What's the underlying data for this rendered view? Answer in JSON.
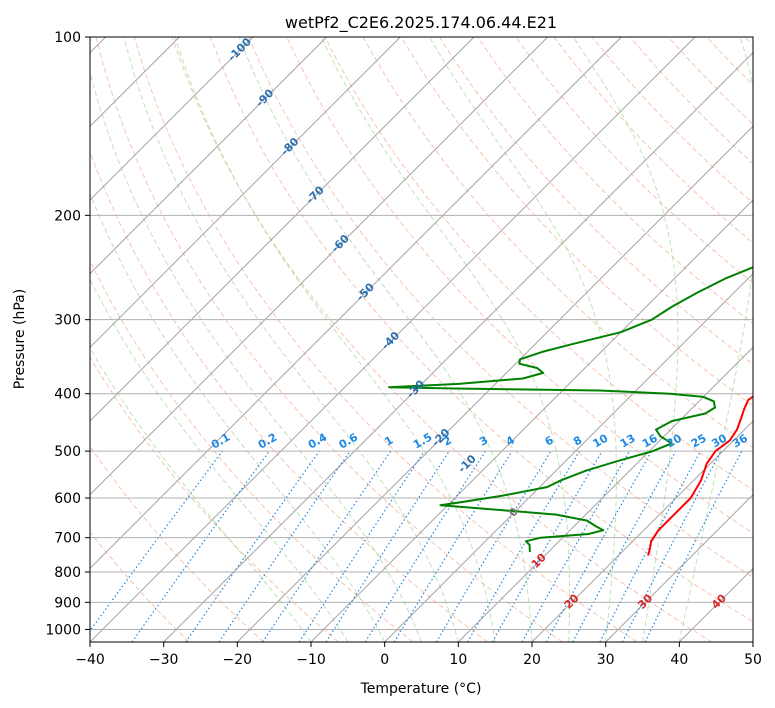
{
  "chart_data": {
    "type": "line",
    "title": "wetPf2_C2E6.2025.174.06.44.E21",
    "xlabel": "Temperature (°C)",
    "ylabel": "Pressure (hPa)",
    "xlim": [
      -40,
      50
    ],
    "ylim": [
      1050,
      100
    ],
    "y_scale": "log",
    "grid": true,
    "x_ticks": [
      "−40",
      "−30",
      "−20",
      "−10",
      "0",
      "10",
      "20",
      "30",
      "40",
      "50"
    ],
    "y_ticks": [
      "100",
      "200",
      "300",
      "400",
      "500",
      "600",
      "700",
      "800",
      "900",
      "1000"
    ],
    "colors": {
      "temperature": "#ff0000",
      "dewpoint": "#008000",
      "skew_isotherms": "#999999",
      "dry_adiabats": "#f4a582",
      "moist_adiabats": "#a6d9a0",
      "mixing_ratio": "#1e88e5",
      "isotherm_labels": "#2a6fb0",
      "warm_labels": "#d62728",
      "zero_label": "#777777"
    },
    "isotherm_labels": [
      "-100",
      "-90",
      "-80",
      "-70",
      "-60",
      "-50",
      "-40",
      "-30",
      "-20",
      "-10",
      "0",
      "10",
      "20",
      "30",
      "40"
    ],
    "mixing_ratio_labels": [
      "0.1",
      "0.2",
      "0.4",
      "0.6",
      "1",
      "1.5",
      "2",
      "3",
      "4",
      "6",
      "8",
      "10",
      "13",
      "16",
      "20",
      "25",
      "30",
      "36"
    ],
    "series": [
      {
        "key": "temperature",
        "points": [
          [
            3,
            100
          ],
          [
            1,
            107
          ],
          [
            -1,
            113
          ],
          [
            -2,
            121
          ],
          [
            -1,
            129
          ],
          [
            0,
            138
          ],
          [
            0.8,
            147
          ],
          [
            1,
            158
          ],
          [
            1,
            170
          ],
          [
            1.5,
            183
          ],
          [
            2.5,
            197
          ],
          [
            3.5,
            211
          ],
          [
            5,
            225
          ],
          [
            7,
            244
          ],
          [
            9,
            265
          ],
          [
            11,
            290
          ],
          [
            12,
            308
          ],
          [
            13.5,
            330
          ],
          [
            15,
            355
          ],
          [
            16.5,
            380
          ],
          [
            17,
            395
          ],
          [
            16.5,
            410
          ],
          [
            17.2,
            425
          ],
          [
            18,
            440
          ],
          [
            19,
            460
          ],
          [
            19.5,
            480
          ],
          [
            19,
            500
          ],
          [
            19.5,
            525
          ],
          [
            21,
            560
          ],
          [
            22,
            600
          ],
          [
            22,
            640
          ],
          [
            22,
            680
          ],
          [
            22.5,
            710
          ],
          [
            23.5,
            735
          ],
          [
            24,
            750
          ]
        ]
      },
      {
        "key": "dewpoint",
        "points": [
          [
            2.5,
            100
          ],
          [
            0,
            106
          ],
          [
            -2.5,
            112
          ],
          [
            -4,
            118
          ],
          [
            -4.5,
            124
          ],
          [
            -4.5,
            132
          ],
          [
            -4,
            140
          ],
          [
            -3.5,
            148
          ],
          [
            -3.5,
            156
          ],
          [
            -2.5,
            163
          ],
          [
            -2.5,
            171
          ],
          [
            -1.5,
            180
          ],
          [
            -1,
            190
          ],
          [
            -1,
            200
          ],
          [
            -0.8,
            210
          ],
          [
            -0.5,
            215
          ],
          [
            0.5,
            220
          ],
          [
            2,
            228
          ],
          [
            1.5,
            235
          ],
          [
            -0.5,
            243
          ],
          [
            -3,
            255
          ],
          [
            -5,
            270
          ],
          [
            -6.5,
            285
          ],
          [
            -7.5,
            300
          ],
          [
            -10,
            315
          ],
          [
            -15,
            330
          ],
          [
            -18,
            340
          ],
          [
            -20,
            350
          ],
          [
            -19.5,
            356
          ],
          [
            -16.5,
            362
          ],
          [
            -15,
            369
          ],
          [
            -17,
            377
          ],
          [
            -25,
            385
          ],
          [
            -34,
            390
          ],
          [
            -25,
            392
          ],
          [
            -5,
            395
          ],
          [
            5,
            400
          ],
          [
            10,
            405
          ],
          [
            12,
            412
          ],
          [
            13,
            422
          ],
          [
            12.5,
            432
          ],
          [
            9,
            445
          ],
          [
            8,
            460
          ],
          [
            9.5,
            472
          ],
          [
            12,
            485
          ],
          [
            10.5,
            500
          ],
          [
            7,
            520
          ],
          [
            4,
            540
          ],
          [
            2,
            560
          ],
          [
            1,
            575
          ],
          [
            -4,
            595
          ],
          [
            -8,
            608
          ],
          [
            -11,
            617
          ],
          [
            -5,
            625
          ],
          [
            6,
            640
          ],
          [
            11,
            655
          ],
          [
            13,
            670
          ],
          [
            14.5,
            680
          ],
          [
            13,
            690
          ],
          [
            7,
            700
          ],
          [
            5.5,
            710
          ],
          [
            6.5,
            720
          ],
          [
            7.5,
            740
          ]
        ]
      }
    ]
  }
}
